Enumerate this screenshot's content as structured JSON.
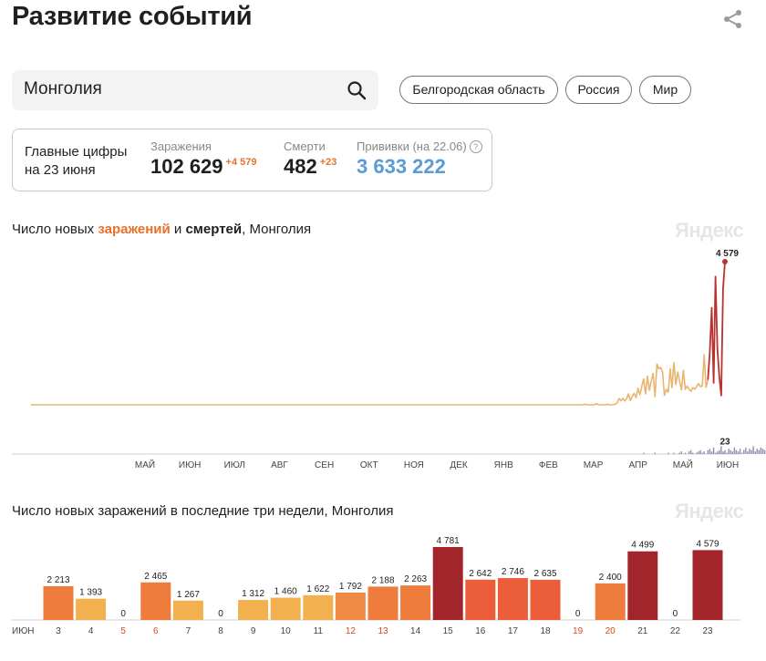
{
  "page": {
    "title": "Развитие событий"
  },
  "search": {
    "value": "Монголия"
  },
  "regions": [
    "Белгородская область",
    "Россия",
    "Мир"
  ],
  "summary": {
    "main_label_1": "Главные цифры",
    "main_label_2": "на 23 июня",
    "cases_label": "Заражения",
    "cases_value": "102 629",
    "cases_delta": "+4 579",
    "deaths_label": "Смерти",
    "deaths_value": "482",
    "deaths_delta": "+23",
    "vacc_label": "Прививки (на 22.06)",
    "vacc_value": "3 633 222",
    "help_icon": "?"
  },
  "colors": {
    "accent": "#e8712a",
    "vaccine": "#5b9bd5",
    "cases_line": "#e8b56e",
    "peak_line": "#b8322f",
    "deaths_bars": "#8a8fab",
    "bar_dark": "#a3252c",
    "weekend_label": "#d9481c"
  },
  "chart1_title": {
    "pre": "Число новых ",
    "highlight": "заражений",
    "mid": " и ",
    "bold": "смертей",
    "post": ", Монголия"
  },
  "chart2_title": "Число новых заражений в последние три недели, Монголия",
  "watermark": "Яндекс",
  "chart_data": [
    {
      "type": "line",
      "title": "Число новых заражений и смертей, Монголия",
      "month_labels": [
        "МАЙ",
        "ИЮН",
        "ИЮЛ",
        "АВГ",
        "СЕН",
        "ОКТ",
        "НОЯ",
        "ДЕК",
        "ЯНВ",
        "ФЕВ",
        "МАР",
        "АПР",
        "МАЙ",
        "ИЮН"
      ],
      "series": [
        {
          "values": [
            0,
            0,
            0,
            0,
            0,
            0,
            0,
            0,
            0,
            0,
            0,
            0,
            0,
            0,
            0,
            0,
            0,
            0,
            0,
            0,
            0,
            0,
            0,
            0,
            0,
            0,
            0,
            0,
            0,
            0,
            0,
            0,
            0,
            0,
            0,
            0,
            0,
            0,
            0,
            0,
            0,
            0,
            0,
            0,
            0,
            0,
            0,
            0,
            0,
            0,
            0,
            0,
            0,
            0,
            0,
            0,
            0,
            0,
            0,
            0,
            0,
            0,
            0,
            0,
            0,
            0,
            0,
            0,
            0,
            0,
            0,
            0,
            0,
            0,
            0,
            0,
            0,
            0,
            0,
            0,
            0,
            0,
            0,
            0,
            0,
            0,
            0,
            0,
            0,
            0,
            0,
            0,
            0,
            0,
            0,
            0,
            0,
            0,
            0,
            0,
            0,
            0,
            0,
            0,
            0,
            0,
            0,
            0,
            0,
            0,
            0,
            0,
            0,
            0,
            0,
            0,
            0,
            0,
            0,
            0,
            0,
            0,
            0,
            0,
            0,
            0,
            0,
            0,
            0,
            0,
            0,
            0,
            0,
            0,
            0,
            0,
            0,
            0,
            0,
            0,
            0,
            0,
            0,
            0,
            0,
            0,
            0,
            0,
            0,
            0,
            0,
            0,
            0,
            0,
            0,
            0,
            0,
            0,
            0,
            0,
            0,
            0,
            0,
            0,
            0,
            0,
            0,
            0,
            0,
            0,
            0,
            0,
            0,
            0,
            0,
            0,
            0,
            0,
            0,
            0,
            0,
            0,
            0,
            0,
            0,
            0,
            0,
            0,
            0,
            0,
            0,
            0,
            0,
            0,
            0,
            0,
            0,
            0,
            0,
            0,
            0,
            0,
            0,
            0,
            0,
            0,
            0,
            0,
            0,
            0,
            0,
            0,
            0,
            0,
            0,
            0,
            0,
            0,
            0,
            0,
            0,
            0,
            0,
            0,
            0,
            0,
            0,
            0,
            0,
            0,
            0,
            0,
            0,
            0,
            0,
            0,
            0,
            0,
            0,
            0,
            0,
            0,
            0,
            0,
            0,
            0,
            0,
            0,
            0,
            0,
            0,
            0,
            0,
            0,
            0,
            0,
            0,
            0,
            0,
            0,
            0,
            0,
            0,
            0,
            0,
            0,
            0,
            0,
            0,
            0,
            0,
            0,
            0,
            0,
            0,
            0,
            0,
            0,
            0,
            0,
            0,
            0,
            0,
            0,
            0,
            0,
            0,
            0,
            0,
            0,
            0,
            0,
            0,
            20,
            0,
            0,
            0,
            0,
            0,
            40,
            0,
            0,
            0,
            0,
            0,
            20,
            0,
            0,
            0,
            20,
            60,
            200,
            130,
            210,
            120,
            200,
            350,
            130,
            270,
            370,
            230,
            530,
            320,
            590,
            830,
            350,
            920,
            460,
            760,
            1000,
            260,
            1300,
            1150,
            1200,
            1050,
            300,
            500,
            400,
            1150,
            550,
            1350,
            650,
            1050,
            760,
            480,
            1100,
            500,
            600,
            500,
            430,
            550,
            500,
            580,
            680,
            580,
            600,
            1600,
            560,
            800,
            1700,
            3100,
            700,
            4100,
            1800,
            900,
            300,
            3700,
            4579
          ],
          "peak_label": "4 579"
        },
        {
          "values": [
            0,
            0,
            0,
            0,
            0,
            0,
            0,
            0,
            0,
            0,
            0,
            0,
            0,
            0,
            0,
            0,
            0,
            0,
            0,
            0,
            0,
            0,
            0,
            0,
            0,
            0,
            0,
            0,
            0,
            0,
            0,
            0,
            0,
            0,
            0,
            0,
            0,
            0,
            0,
            0,
            0,
            0,
            0,
            0,
            0,
            0,
            0,
            0,
            0,
            0,
            0,
            0,
            0,
            0,
            0,
            0,
            0,
            0,
            0,
            0,
            0,
            0,
            0,
            0,
            0,
            0,
            0,
            0,
            0,
            0,
            0,
            0,
            0,
            0,
            0,
            0,
            0,
            0,
            0,
            0,
            0,
            0,
            0,
            0,
            0,
            0,
            0,
            0,
            0,
            0,
            0,
            0,
            0,
            0,
            0,
            0,
            0,
            0,
            0,
            0,
            0,
            0,
            0,
            0,
            0,
            0,
            0,
            0,
            0,
            0,
            0,
            0,
            0,
            0,
            0,
            0,
            0,
            0,
            0,
            0,
            0,
            0,
            0,
            0,
            0,
            0,
            0,
            0,
            0,
            0,
            0,
            0,
            0,
            0,
            0,
            0,
            0,
            0,
            0,
            0,
            0,
            0,
            0,
            0,
            0,
            0,
            0,
            0,
            0,
            0,
            0,
            0,
            0,
            0,
            0,
            0,
            0,
            0,
            0,
            0,
            0,
            0,
            0,
            0,
            0,
            0,
            0,
            0,
            0,
            0,
            0,
            0,
            0,
            0,
            0,
            0,
            0,
            0,
            0,
            0,
            0,
            0,
            0,
            0,
            0,
            0,
            0,
            0,
            0,
            0,
            0,
            0,
            0,
            0,
            0,
            0,
            0,
            0,
            0,
            0,
            0,
            0,
            0,
            0,
            0,
            0,
            0,
            0,
            0,
            0,
            0,
            0,
            0,
            0,
            0,
            0,
            0,
            0,
            0,
            0,
            0,
            0,
            0,
            0,
            0,
            0,
            0,
            0,
            0,
            0,
            0,
            0,
            0,
            0,
            0,
            0,
            0,
            0,
            0,
            0,
            0,
            0,
            0,
            0,
            0,
            0,
            0,
            0,
            0,
            0,
            0,
            0,
            0,
            0,
            0,
            0,
            0,
            0,
            0,
            0,
            0,
            0,
            0,
            0,
            0,
            0,
            0,
            0,
            0,
            0,
            0,
            0,
            0,
            0,
            0,
            0,
            0,
            0,
            0,
            0,
            0,
            0,
            0,
            0,
            0,
            0,
            0,
            0,
            0,
            0,
            0,
            0,
            0,
            0,
            0,
            0,
            0,
            0,
            0,
            0,
            0,
            0,
            0,
            0,
            0,
            0,
            0,
            0,
            0,
            0,
            0,
            0,
            0,
            0,
            0,
            0,
            0,
            0,
            0,
            0,
            0,
            0,
            0,
            0,
            1,
            0,
            0,
            0,
            0,
            0,
            1,
            0,
            0,
            0,
            0,
            0,
            0,
            1,
            0,
            0,
            1,
            0,
            0,
            1,
            2,
            0,
            1,
            0,
            2,
            3,
            1,
            0,
            1,
            2,
            3,
            1,
            2,
            0,
            3,
            4,
            2,
            5,
            1,
            2,
            3,
            6,
            2,
            3,
            1,
            4,
            3,
            2,
            5,
            3,
            2,
            4,
            1,
            3,
            5,
            2,
            4,
            3,
            6,
            2,
            4,
            3,
            5,
            4,
            3,
            7,
            5,
            4,
            8,
            6,
            4,
            9,
            6,
            5,
            7,
            12,
            8,
            6,
            17,
            10,
            8,
            15,
            11,
            9,
            19,
            14,
            7,
            23
          ],
          "peak_label": "23"
        }
      ]
    },
    {
      "type": "bar",
      "title": "Число новых заражений в последние три недели, Монголия",
      "month_label": "ИЮН",
      "categories": [
        "3",
        "4",
        "5",
        "6",
        "7",
        "8",
        "9",
        "10",
        "11",
        "12",
        "13",
        "14",
        "15",
        "16",
        "17",
        "18",
        "19",
        "20",
        "21",
        "22",
        "23"
      ],
      "weekend_days": [
        "5",
        "6",
        "12",
        "13",
        "19",
        "20"
      ],
      "values": [
        2213,
        1393,
        0,
        2465,
        1267,
        0,
        1312,
        1460,
        1622,
        1792,
        2188,
        2263,
        4781,
        2642,
        2746,
        2635,
        0,
        2400,
        4499,
        0,
        4579
      ],
      "value_labels": [
        "2 213",
        "1 393",
        "0",
        "2 465",
        "1 267",
        "0",
        "1 312",
        "1 460",
        "1 622",
        "1 792",
        "2 188",
        "2 263",
        "4 781",
        "2 642",
        "2 746",
        "2 635",
        "0",
        "2 400",
        "4 499",
        "0",
        "4 579"
      ]
    }
  ]
}
